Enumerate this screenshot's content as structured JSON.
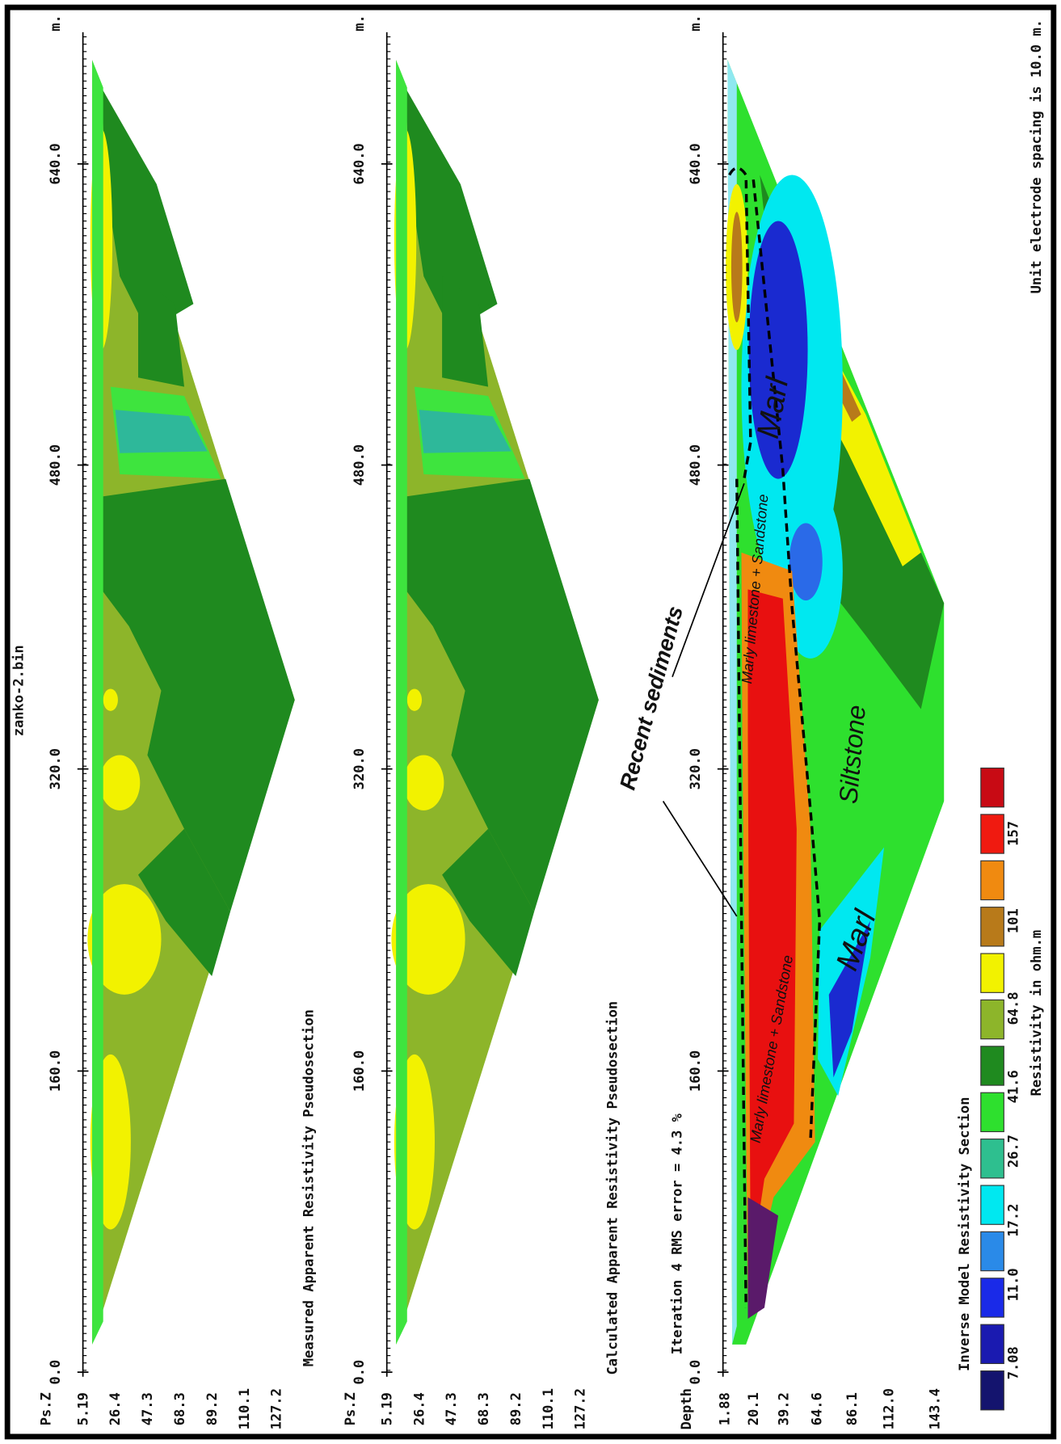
{
  "file_name": "zanko-2.bin",
  "panels": [
    {
      "title": "Measured Apparent Resistivity Pseudosection",
      "depth_label": "Ps.Z",
      "x_ticks": [
        "0.0",
        "160.0",
        "320.0",
        "480.0",
        "640.0"
      ],
      "x_unit": "m.",
      "depth_ticks": [
        "5.19",
        "26.4",
        "47.3",
        "68.3",
        "89.2",
        "110.1",
        "127.2"
      ]
    },
    {
      "title": "Calculated Apparent Resistivity Pseudosection",
      "depth_label": "Ps.Z",
      "x_ticks": [
        "0.0",
        "160.0",
        "320.0",
        "480.0",
        "640.0"
      ],
      "x_unit": "m.",
      "depth_ticks": [
        "5.19",
        "26.4",
        "47.3",
        "68.3",
        "89.2",
        "110.1",
        "127.2"
      ]
    },
    {
      "title": "Iteration 4 RMS error = 4.3 %",
      "depth_label": "Depth",
      "x_ticks": [
        "0.0",
        "160.0",
        "320.0",
        "480.0",
        "640.0"
      ],
      "x_unit": "m.",
      "depth_ticks": [
        "1.88",
        "20.1",
        "39.2",
        "64.6",
        "86.1",
        "112.0",
        "143.4"
      ]
    }
  ],
  "legend": {
    "title": "Inverse Model Resistivity Section",
    "unit": "Resistivity in ohm.m",
    "labels": [
      "7.08",
      "11.0",
      "17.2",
      "26.7",
      "41.6",
      "64.8",
      "101",
      "157"
    ]
  },
  "note": "Unit electrode spacing is 10.0 m.",
  "annotations": {
    "recent_sediments": "Recent sediments",
    "marly_upper": "Marly limestone + Sandstone",
    "marly_lower": "Marly limestone + Sandstone",
    "marl_upper": "Marl",
    "marl_lower": "Marl",
    "siltstone": "Siltstone"
  }
}
